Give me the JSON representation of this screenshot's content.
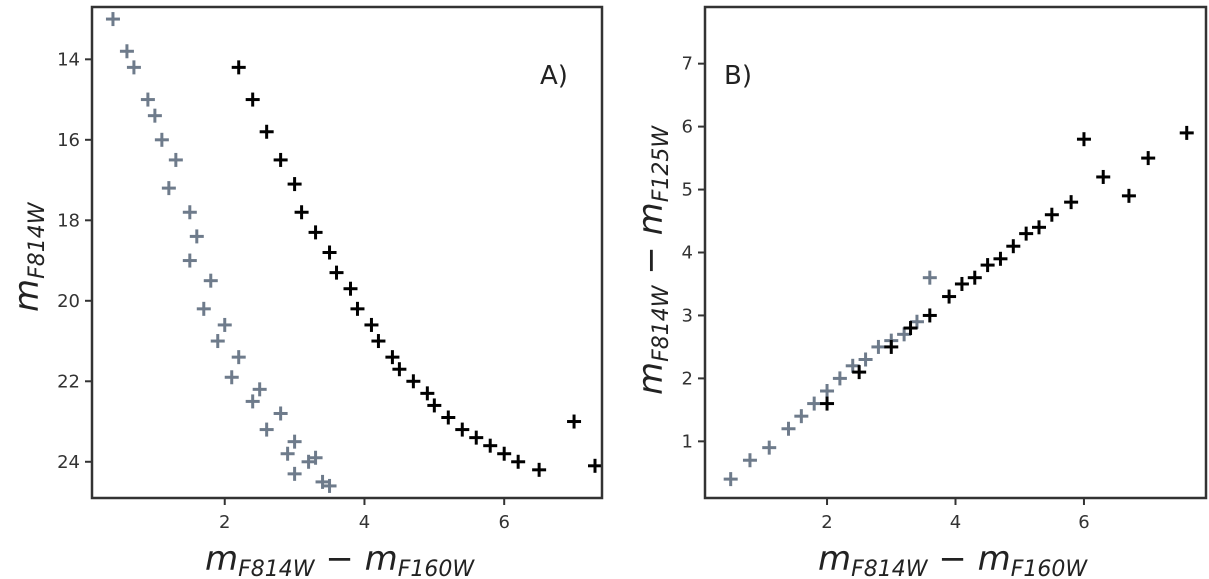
{
  "chart_data": [
    {
      "type": "scatter",
      "panel_label": "A)",
      "xlabel": "m_F814W − m_F160W",
      "ylabel": "m_F814W",
      "xlim": [
        0.1,
        7.4
      ],
      "ylim": [
        24.9,
        12.7
      ],
      "y_inverted": true,
      "xticks": [
        2,
        4,
        6
      ],
      "yticks": [
        14,
        16,
        18,
        20,
        22,
        24
      ],
      "grid": false,
      "colors": {
        "population_1": "#6e7b8b",
        "population_2": "#000000"
      },
      "series": [
        {
          "color": "#6e7b8b",
          "x": [
            0.4,
            0.6,
            0.7,
            0.9,
            1.0,
            1.1,
            1.3,
            1.2,
            1.5,
            1.6,
            1.5,
            1.8,
            1.7,
            2.0,
            1.9,
            2.2,
            2.1,
            2.5,
            2.4,
            2.8,
            2.6,
            3.0,
            2.9,
            3.2,
            3.0,
            3.4,
            3.3,
            3.5
          ],
          "y": [
            13.0,
            13.8,
            14.2,
            15.0,
            15.4,
            16.0,
            16.5,
            17.2,
            17.8,
            18.4,
            19.0,
            19.5,
            20.2,
            20.6,
            21.0,
            21.4,
            21.9,
            22.2,
            22.5,
            22.8,
            23.2,
            23.5,
            23.8,
            24.0,
            24.3,
            24.5,
            23.9,
            24.6
          ]
        },
        {
          "color": "#000000",
          "x": [
            2.2,
            2.4,
            2.6,
            2.8,
            3.0,
            3.1,
            3.3,
            3.5,
            3.6,
            3.8,
            3.9,
            4.1,
            4.2,
            4.4,
            4.5,
            4.7,
            4.9,
            5.0,
            5.2,
            5.4,
            5.6,
            5.8,
            6.0,
            6.2,
            6.5,
            7.0,
            7.3
          ],
          "y": [
            14.2,
            15.0,
            15.8,
            16.5,
            17.1,
            17.8,
            18.3,
            18.8,
            19.3,
            19.7,
            20.2,
            20.6,
            21.0,
            21.4,
            21.7,
            22.0,
            22.3,
            22.6,
            22.9,
            23.2,
            23.4,
            23.6,
            23.8,
            24.0,
            24.2,
            23.0,
            24.1
          ]
        }
      ]
    },
    {
      "type": "scatter",
      "panel_label": "B)",
      "xlabel": "m_F814W − m_F160W",
      "ylabel": "m_F814W − m_F125W",
      "xlim": [
        0.1,
        7.9
      ],
      "ylim": [
        0.1,
        7.9
      ],
      "xticks": [
        2,
        4,
        6
      ],
      "yticks": [
        1,
        2,
        3,
        4,
        5,
        6,
        7
      ],
      "grid": false,
      "colors": {
        "population_1": "#6e7b8b",
        "population_2": "#000000"
      },
      "series": [
        {
          "color": "#6e7b8b",
          "x": [
            0.5,
            0.8,
            1.1,
            1.4,
            1.6,
            1.8,
            2.0,
            2.2,
            2.4,
            2.6,
            2.8,
            3.0,
            3.2,
            3.4,
            3.6
          ],
          "y": [
            0.4,
            0.7,
            0.9,
            1.2,
            1.4,
            1.6,
            1.8,
            2.0,
            2.2,
            2.3,
            2.5,
            2.6,
            2.7,
            2.9,
            3.6
          ]
        },
        {
          "color": "#000000",
          "x": [
            2.0,
            2.5,
            3.0,
            3.3,
            3.6,
            3.9,
            4.1,
            4.3,
            4.5,
            4.7,
            4.9,
            5.1,
            5.3,
            5.5,
            5.8,
            6.0,
            6.3,
            6.7,
            7.0,
            7.6
          ],
          "y": [
            1.6,
            2.1,
            2.5,
            2.8,
            3.0,
            3.3,
            3.5,
            3.6,
            3.8,
            3.9,
            4.1,
            4.3,
            4.4,
            4.6,
            4.8,
            5.8,
            5.2,
            4.9,
            5.5,
            5.9
          ]
        }
      ]
    }
  ],
  "panels": {
    "a": {
      "label": "A)",
      "xlabel_main": "m",
      "xlabel_sub1": "F814W",
      "xlabel_minus": " − m",
      "xlabel_sub2": "F160W",
      "ylabel_main": "m",
      "ylabel_sub": "F814W"
    },
    "b": {
      "label": "B)",
      "xlabel_main": "m",
      "xlabel_sub1": "F814W",
      "xlabel_minus": " − m",
      "xlabel_sub2": "F160W",
      "ylabel_main": "m",
      "ylabel_sub1": "F814W",
      "ylabel_minus": " − m",
      "ylabel_sub2": "F125W"
    }
  }
}
